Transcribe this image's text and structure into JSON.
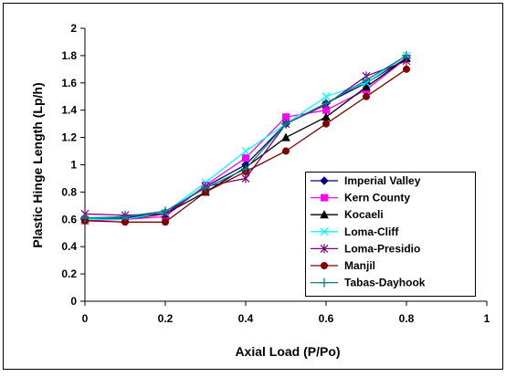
{
  "chart_data": {
    "type": "line",
    "xlabel": "Axial Load (P/Po)",
    "ylabel": "Plastic Hinge Length (Lp/h)",
    "xlim": [
      0,
      1
    ],
    "ylim": [
      0,
      2
    ],
    "xticks": [
      0,
      0.2,
      0.4,
      0.6,
      0.8,
      1
    ],
    "xtick_labels": [
      "0",
      "0.2",
      "0.4",
      "0.6",
      "0.8",
      "1"
    ],
    "yticks": [
      0,
      0.2,
      0.4,
      0.6,
      0.8,
      1,
      1.2,
      1.4,
      1.6,
      1.8,
      2
    ],
    "ytick_labels": [
      "0",
      "0.2",
      "0.4",
      "0.6",
      "0.8",
      "1",
      "1.2",
      "1.4",
      "1.6",
      "1.8",
      "2"
    ],
    "grid": false,
    "legend_position": "right",
    "x": [
      0,
      0.1,
      0.2,
      0.3,
      0.4,
      0.5,
      0.6,
      0.7,
      0.8
    ],
    "series": [
      {
        "name": "Imperial Valley",
        "color": "#000080",
        "marker": "diamond",
        "values": [
          0.6,
          0.61,
          0.65,
          0.84,
          1.0,
          1.3,
          1.45,
          1.6,
          1.78
        ]
      },
      {
        "name": "Kern County",
        "color": "#ff00ff",
        "marker": "square",
        "values": [
          0.59,
          0.6,
          0.62,
          0.85,
          1.05,
          1.35,
          1.4,
          1.55,
          1.78
        ]
      },
      {
        "name": "Kocaeli",
        "color": "#000000",
        "marker": "triangle",
        "values": [
          0.6,
          0.6,
          0.64,
          0.8,
          0.98,
          1.2,
          1.35,
          1.57,
          1.78
        ]
      },
      {
        "name": "Loma-Cliff",
        "color": "#00ffff",
        "marker": "x",
        "values": [
          0.6,
          0.6,
          0.65,
          0.87,
          1.1,
          1.3,
          1.5,
          1.6,
          1.8
        ]
      },
      {
        "name": "Loma-Presidio",
        "color": "#800080",
        "marker": "star",
        "values": [
          0.64,
          0.63,
          0.64,
          0.84,
          0.9,
          1.3,
          1.44,
          1.65,
          1.76
        ]
      },
      {
        "name": "Manjil",
        "color": "#800000",
        "marker": "circle",
        "values": [
          0.59,
          0.58,
          0.58,
          0.8,
          0.95,
          1.1,
          1.3,
          1.5,
          1.7
        ]
      },
      {
        "name": "Tabas-Dayhook",
        "color": "#008080",
        "marker": "plus",
        "values": [
          0.61,
          0.62,
          0.66,
          0.83,
          0.97,
          1.3,
          1.45,
          1.62,
          1.8
        ]
      }
    ]
  }
}
